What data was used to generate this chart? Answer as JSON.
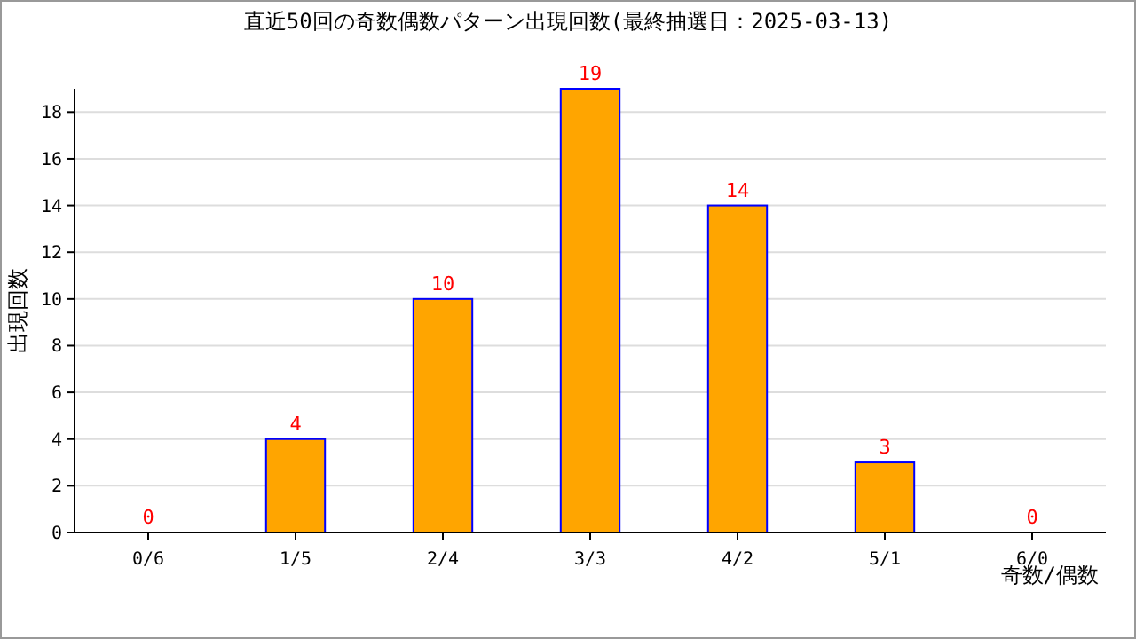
{
  "chart_data": {
    "type": "bar",
    "title": "直近50回の奇数偶数パターン出現回数(最終抽選日：2025-03-13)",
    "xlabel": "奇数/偶数",
    "ylabel": "出現回数",
    "categories": [
      "0/6",
      "1/5",
      "2/4",
      "3/3",
      "4/2",
      "5/1",
      "6/0"
    ],
    "values": [
      0,
      4,
      10,
      19,
      14,
      3,
      0
    ],
    "color": "#ffa500",
    "ylim": [
      0,
      19
    ],
    "yticks": [
      0,
      2,
      4,
      6,
      8,
      10,
      12,
      14,
      16,
      18
    ],
    "grid": "y",
    "data_labels": true
  }
}
